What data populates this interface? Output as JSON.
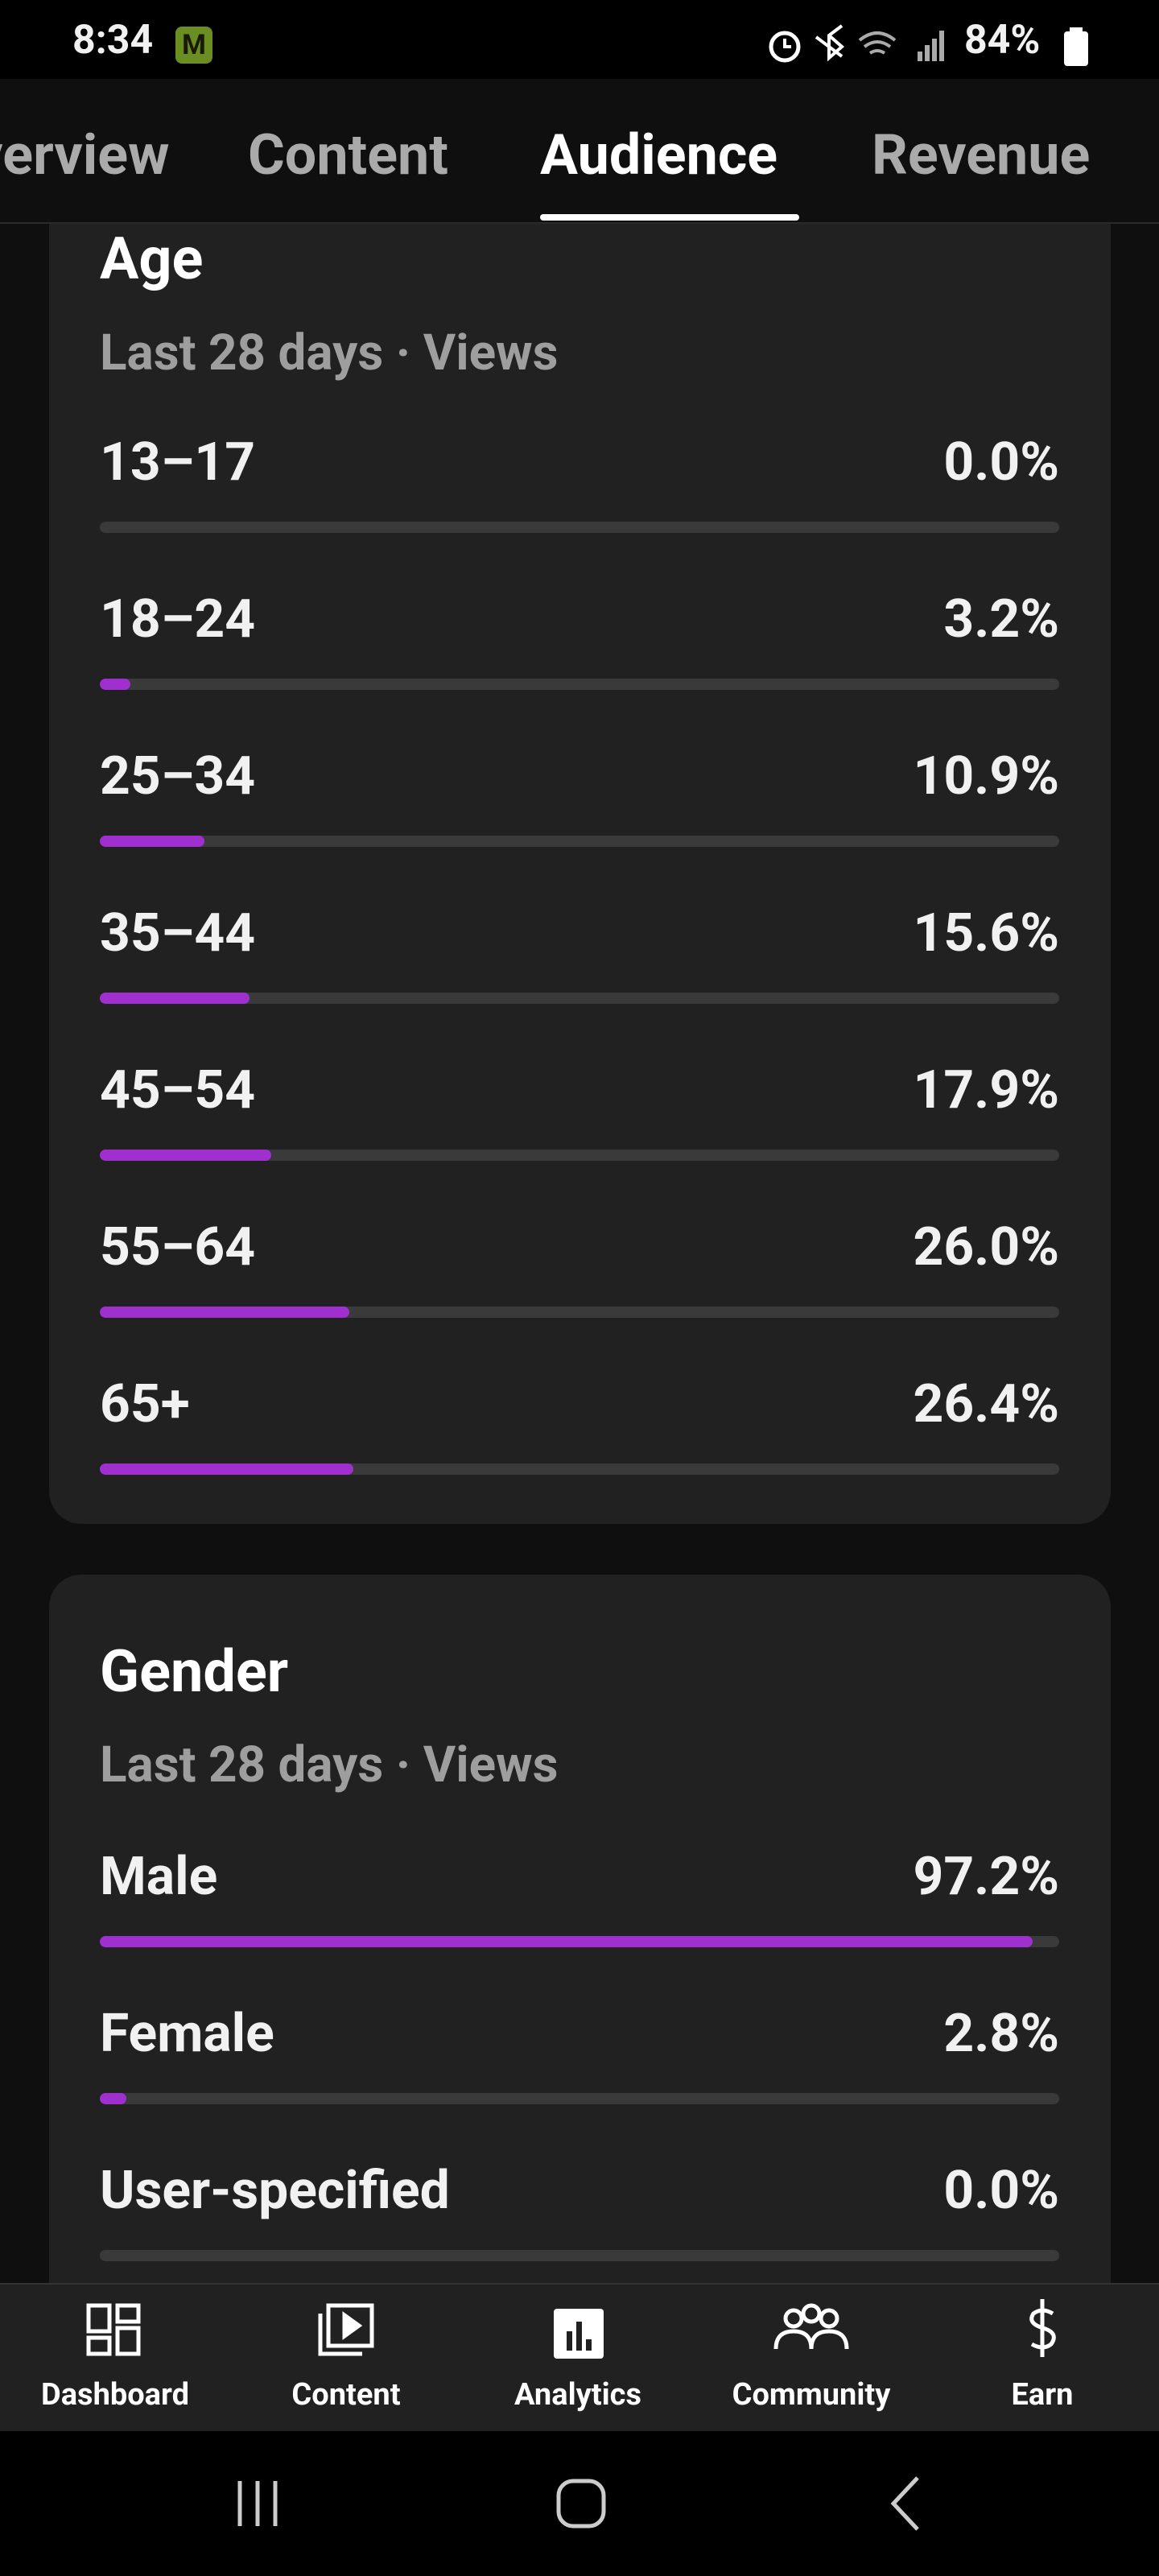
{
  "status_bar": {
    "time": "8:34",
    "badge": "M",
    "battery": "84%"
  },
  "tabs": [
    "Overview",
    "Content",
    "Audience",
    "Revenue"
  ],
  "age": {
    "title": "Age",
    "subtitle": "Last 28 days · Views",
    "rows": [
      {
        "label": "13–17",
        "percent": 0.0,
        "value_label": "0.0%"
      },
      {
        "label": "18–24",
        "percent": 3.2,
        "value_label": "3.2%"
      },
      {
        "label": "25–34",
        "percent": 10.9,
        "value_label": "10.9%"
      },
      {
        "label": "35–44",
        "percent": 15.6,
        "value_label": "15.6%"
      },
      {
        "label": "45–54",
        "percent": 17.9,
        "value_label": "17.9%"
      },
      {
        "label": "55–64",
        "percent": 26.0,
        "value_label": "26.0%"
      },
      {
        "label": "65+",
        "percent": 26.4,
        "value_label": "26.4%"
      }
    ]
  },
  "gender": {
    "title": "Gender",
    "subtitle": "Last 28 days · Views",
    "rows": [
      {
        "label": "Male",
        "percent": 97.2,
        "value_label": "97.2%"
      },
      {
        "label": "Female",
        "percent": 2.8,
        "value_label": "2.8%"
      },
      {
        "label": "User-specified",
        "percent": 0.0,
        "value_label": "0.0%"
      }
    ]
  },
  "bottom_nav": [
    "Dashboard",
    "Content",
    "Analytics",
    "Community",
    "Earn"
  ]
}
